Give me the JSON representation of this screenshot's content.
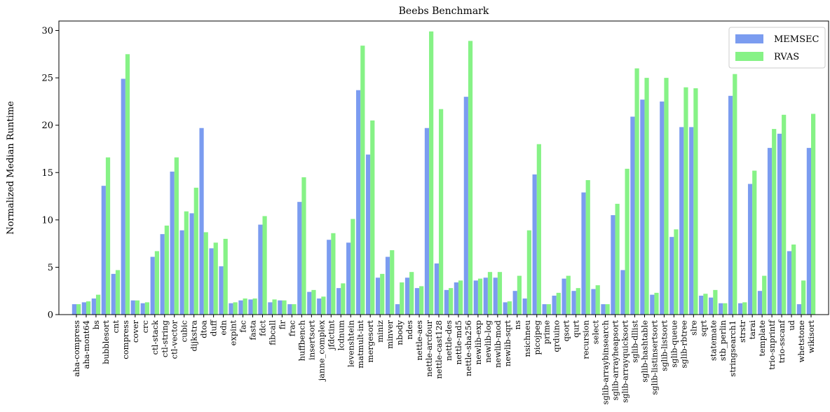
{
  "chart_data": {
    "type": "bar",
    "title": "Beebs Benchmark",
    "xlabel": "",
    "ylabel": "Normalized Median Runtime",
    "ylim": [
      0,
      31
    ],
    "yticks": [
      0,
      5,
      10,
      15,
      20,
      25,
      30
    ],
    "grid": false,
    "legend_position": "top-right",
    "colors": {
      "MEMSEC": "#7B9CF0",
      "RVAS": "#86F286"
    },
    "categories": [
      "aha-compress",
      "aha-mont64",
      "bs",
      "bubblesort",
      "cnt",
      "compress",
      "cover",
      "crc",
      "ctl-stack",
      "ctl-string",
      "ctl-vector",
      "cubic",
      "dijkstra",
      "dtoa",
      "duff",
      "edn",
      "expint",
      "fac",
      "fasta",
      "fdct",
      "fibcall",
      "fir",
      "frac",
      "huffbench",
      "insertsort",
      "janne_complex",
      "jfdctint",
      "lcdnum",
      "levenshtein",
      "matmult-int",
      "mergesort",
      "miniz",
      "minver",
      "nbody",
      "ndes",
      "nettle-aes",
      "nettle-arcfour",
      "nettle-cast128",
      "nettle-des",
      "nettle-md5",
      "nettle-sha256",
      "newlib-exp",
      "newlib-log",
      "newlib-mod",
      "newlib-sqrt",
      "ns",
      "nsichneu",
      "picojpeg",
      "prime",
      "qrduino",
      "qsort",
      "qurt",
      "recursion",
      "select",
      "sglib-arraybinsearch",
      "sglib-arrayheapsort",
      "sglib-arrayquicksort",
      "sglib-dllist",
      "sglib-hashtable",
      "sglib-listinsertsort",
      "sglib-listsort",
      "sglib-queue",
      "sglib-rbtree",
      "slre",
      "sqrt",
      "statemate",
      "stb_perlin",
      "stringsearch1",
      "strstr",
      "tarai",
      "template",
      "trio-snprintf",
      "trio-sscanf",
      "ud",
      "whetstone",
      "wikisort"
    ],
    "series": [
      {
        "name": "MEMSEC",
        "values": [
          1.1,
          1.3,
          1.7,
          13.6,
          4.3,
          24.9,
          1.5,
          1.2,
          6.1,
          8.5,
          15.1,
          8.9,
          10.7,
          19.7,
          7.0,
          5.1,
          1.2,
          1.5,
          1.6,
          9.5,
          1.3,
          1.5,
          1.1,
          11.9,
          2.4,
          1.7,
          7.9,
          2.8,
          7.6,
          23.7,
          16.9,
          3.9,
          6.1,
          1.1,
          3.9,
          2.8,
          19.7,
          5.4,
          2.6,
          3.4,
          23.0,
          3.6,
          3.9,
          3.9,
          1.3,
          2.5,
          1.7,
          14.8,
          1.1,
          2.0,
          3.8,
          2.5,
          12.9,
          2.7,
          1.1,
          10.5,
          4.7,
          20.9,
          22.7,
          2.1,
          22.5,
          8.2,
          19.8,
          19.8,
          2.0,
          1.8,
          1.2,
          23.1,
          1.2,
          13.8,
          2.5,
          17.6,
          19.1,
          6.7,
          1.1,
          17.6
        ]
      },
      {
        "name": "RVAS",
        "values": [
          1.1,
          1.4,
          2.1,
          16.6,
          4.7,
          27.5,
          1.5,
          1.3,
          6.7,
          9.4,
          16.6,
          10.9,
          13.4,
          8.7,
          7.6,
          8.0,
          1.3,
          1.7,
          1.7,
          10.4,
          1.6,
          1.5,
          1.1,
          14.5,
          2.6,
          1.9,
          8.6,
          3.3,
          10.1,
          28.4,
          20.5,
          4.3,
          6.8,
          3.4,
          4.5,
          3.0,
          29.9,
          21.7,
          2.8,
          3.6,
          28.9,
          3.8,
          4.5,
          4.5,
          1.4,
          4.1,
          8.9,
          18.0,
          1.1,
          2.3,
          4.1,
          2.8,
          14.2,
          3.1,
          1.1,
          11.7,
          15.4,
          26.0,
          25.0,
          2.3,
          25.0,
          9.0,
          24.0,
          23.9,
          2.2,
          2.6,
          1.2,
          25.4,
          1.3,
          15.2,
          4.1,
          19.6,
          21.1,
          7.4,
          3.6,
          21.2
        ]
      }
    ]
  }
}
